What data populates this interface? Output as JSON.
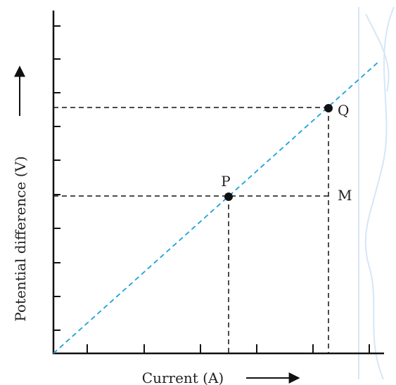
{
  "axes": {
    "x_label": "Current (A)",
    "y_label": "Potential difference (V)"
  },
  "points": [
    {
      "label": "P"
    },
    {
      "label": "Q"
    },
    {
      "label": "M"
    }
  ]
}
